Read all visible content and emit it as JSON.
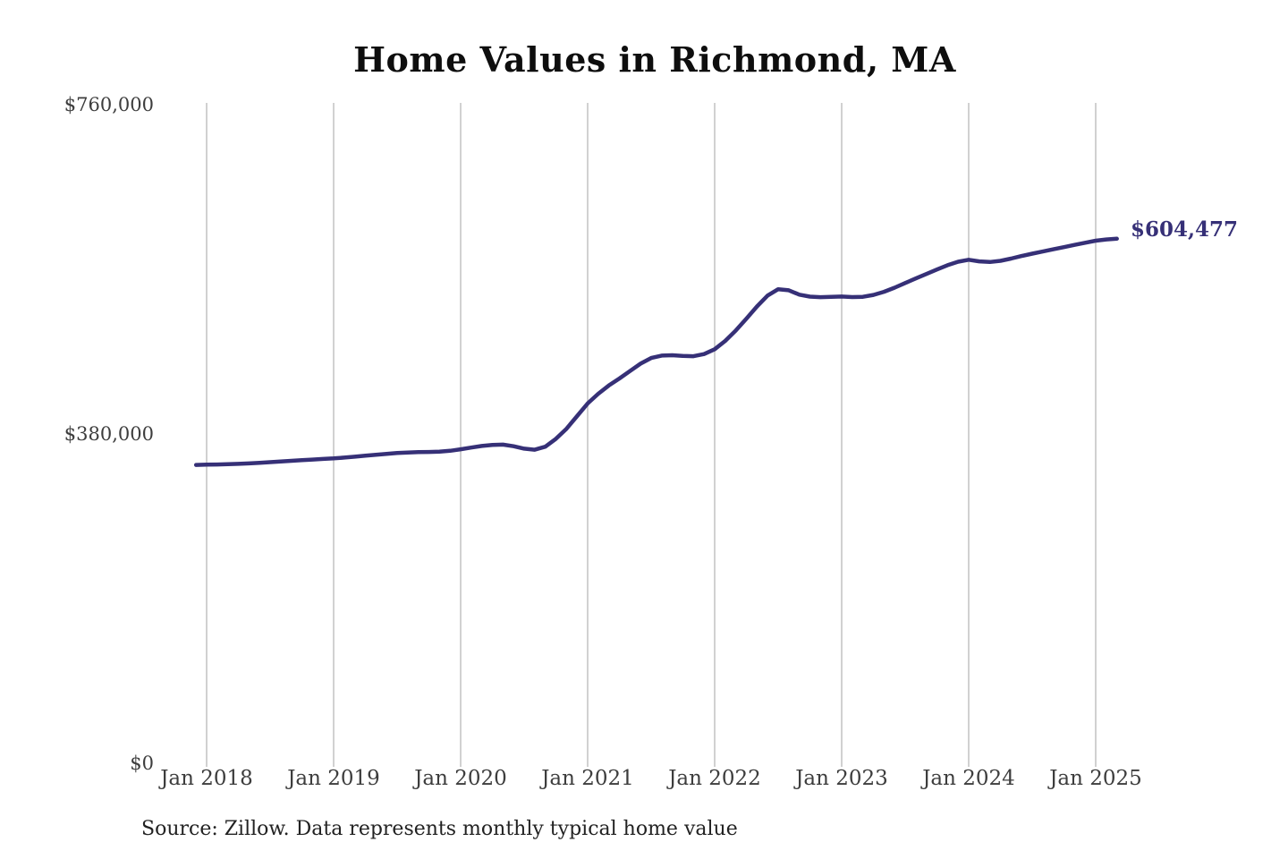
{
  "source_note": "Source: Zillow. Data represents monthly typical home value",
  "colors": {
    "line": "#363077",
    "grid": "#c2c2c2",
    "tick_text": "#3d3d3d",
    "title_text": "#0e0e0e",
    "annotation": "#363077",
    "background": "#ffffff"
  },
  "chart_data": {
    "type": "line",
    "title": "Home Values in Richmond, MA",
    "series_name": "Typical home value (USD)",
    "frequency": "monthly",
    "x_start": "Dec 2017",
    "x_end": "Mar 2025",
    "ylim": [
      0,
      760000
    ],
    "y_ticks": [
      0,
      380000,
      760000
    ],
    "y_tick_labels": [
      "$0",
      "$380,000",
      "$760,000"
    ],
    "x_tick_labels": [
      "Jan 2018",
      "Jan 2019",
      "Jan 2020",
      "Jan 2021",
      "Jan 2022",
      "Jan 2023",
      "Jan 2024",
      "Jan 2025"
    ],
    "latest_value": 604477,
    "latest_value_label": "$604,477",
    "grid": "vertical-only",
    "legend": "none",
    "values": [
      345600,
      345900,
      346100,
      346400,
      346800,
      347300,
      348000,
      348800,
      349600,
      350300,
      351000,
      351700,
      352400,
      353100,
      354000,
      355000,
      356100,
      357200,
      358300,
      359200,
      359800,
      360200,
      360400,
      360700,
      361800,
      363500,
      365500,
      367300,
      368500,
      368800,
      367000,
      364200,
      363000,
      366500,
      375500,
      387000,
      401500,
      416000,
      427000,
      436500,
      444500,
      453000,
      461500,
      468000,
      470800,
      471200,
      470300,
      470000,
      472500,
      478000,
      487500,
      499500,
      513000,
      527000,
      539500,
      546800,
      545500,
      540500,
      538200,
      537600,
      537900,
      538300,
      537700,
      538000,
      540200,
      543800,
      548500,
      553800,
      559000,
      564200,
      569300,
      574200,
      578200,
      580400,
      578600,
      577900,
      579200,
      581800,
      584800,
      587400,
      589900,
      592400,
      594900,
      597400,
      599900,
      602300,
      603700,
      604477
    ]
  }
}
